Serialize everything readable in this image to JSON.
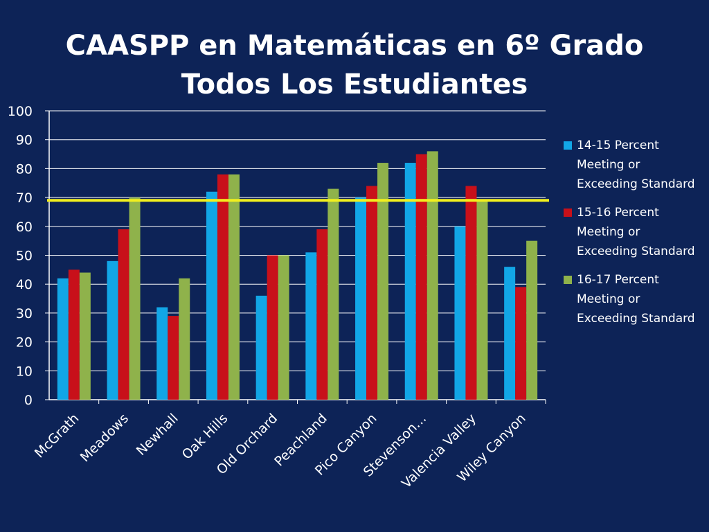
{
  "title": {
    "line1": "CAASPP en Matemáticas en 6º Grado",
    "line2": "Todos Los Estudiantes"
  },
  "colors": {
    "background": "#0d2357",
    "reference_line": "#f3f01e",
    "series": [
      "#12a6e6",
      "#c8101a",
      "#8fb24b"
    ]
  },
  "chart_data": {
    "type": "bar",
    "categories": [
      "McGrath",
      "Meadows",
      "Newhall",
      "Oak Hills",
      "Old Orchard",
      "Peachland",
      "Pico Canyon",
      "Stevenson…",
      "Valencia Valley",
      "Wiley Canyon"
    ],
    "series": [
      {
        "name": "14-15 Percent Meeting or Exceeding Standard",
        "name_lines": [
          "14-15 Percent",
          "Meeting or",
          "Exceeding Standard"
        ],
        "values": [
          42,
          48,
          32,
          72,
          36,
          51,
          70,
          82,
          60,
          46
        ]
      },
      {
        "name": "15-16 Percent Meeting or Exceeding Standard",
        "name_lines": [
          "15-16 Percent",
          "Meeting or",
          "Exceeding Standard"
        ],
        "values": [
          45,
          59,
          29,
          78,
          50,
          59,
          74,
          85,
          74,
          39
        ]
      },
      {
        "name": "16-17 Percent Meeting or Exceeding Standard",
        "name_lines": [
          "16-17 Percent",
          "Meeting or",
          "Exceeding Standard"
        ],
        "values": [
          44,
          70,
          42,
          78,
          50,
          73,
          82,
          86,
          69,
          55
        ]
      }
    ],
    "ylim": [
      0,
      100
    ],
    "yticks": [
      "0",
      "10",
      "20",
      "30",
      "40",
      "50",
      "60",
      "70",
      "80",
      "90",
      "100"
    ],
    "grid": true,
    "reference_line": 69,
    "legend_position": "right"
  }
}
